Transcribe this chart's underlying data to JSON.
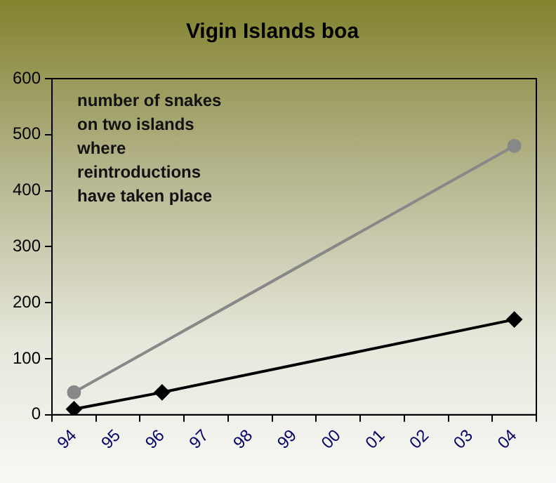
{
  "chart_data": {
    "type": "line",
    "title": "Vigin Islands boa",
    "categories": [
      "94",
      "95",
      "96",
      "97",
      "98",
      "99",
      "00",
      "01",
      "02",
      "03",
      "04"
    ],
    "series": [
      {
        "color": "#888888",
        "marker": "circle",
        "values": [
          40,
          null,
          null,
          null,
          null,
          null,
          null,
          null,
          null,
          null,
          480
        ]
      },
      {
        "color": "#000000",
        "marker": "diamond",
        "values": [
          10,
          null,
          40,
          null,
          null,
          null,
          null,
          null,
          null,
          null,
          170
        ]
      }
    ],
    "ylim": [
      0,
      600
    ],
    "yticks": [
      0,
      100,
      200,
      300,
      400,
      500,
      600
    ],
    "grid": false,
    "legend": false,
    "annotations": [
      "number of snakes\non two islands\nwhere\nreintroductions\nhave taken place"
    ]
  }
}
